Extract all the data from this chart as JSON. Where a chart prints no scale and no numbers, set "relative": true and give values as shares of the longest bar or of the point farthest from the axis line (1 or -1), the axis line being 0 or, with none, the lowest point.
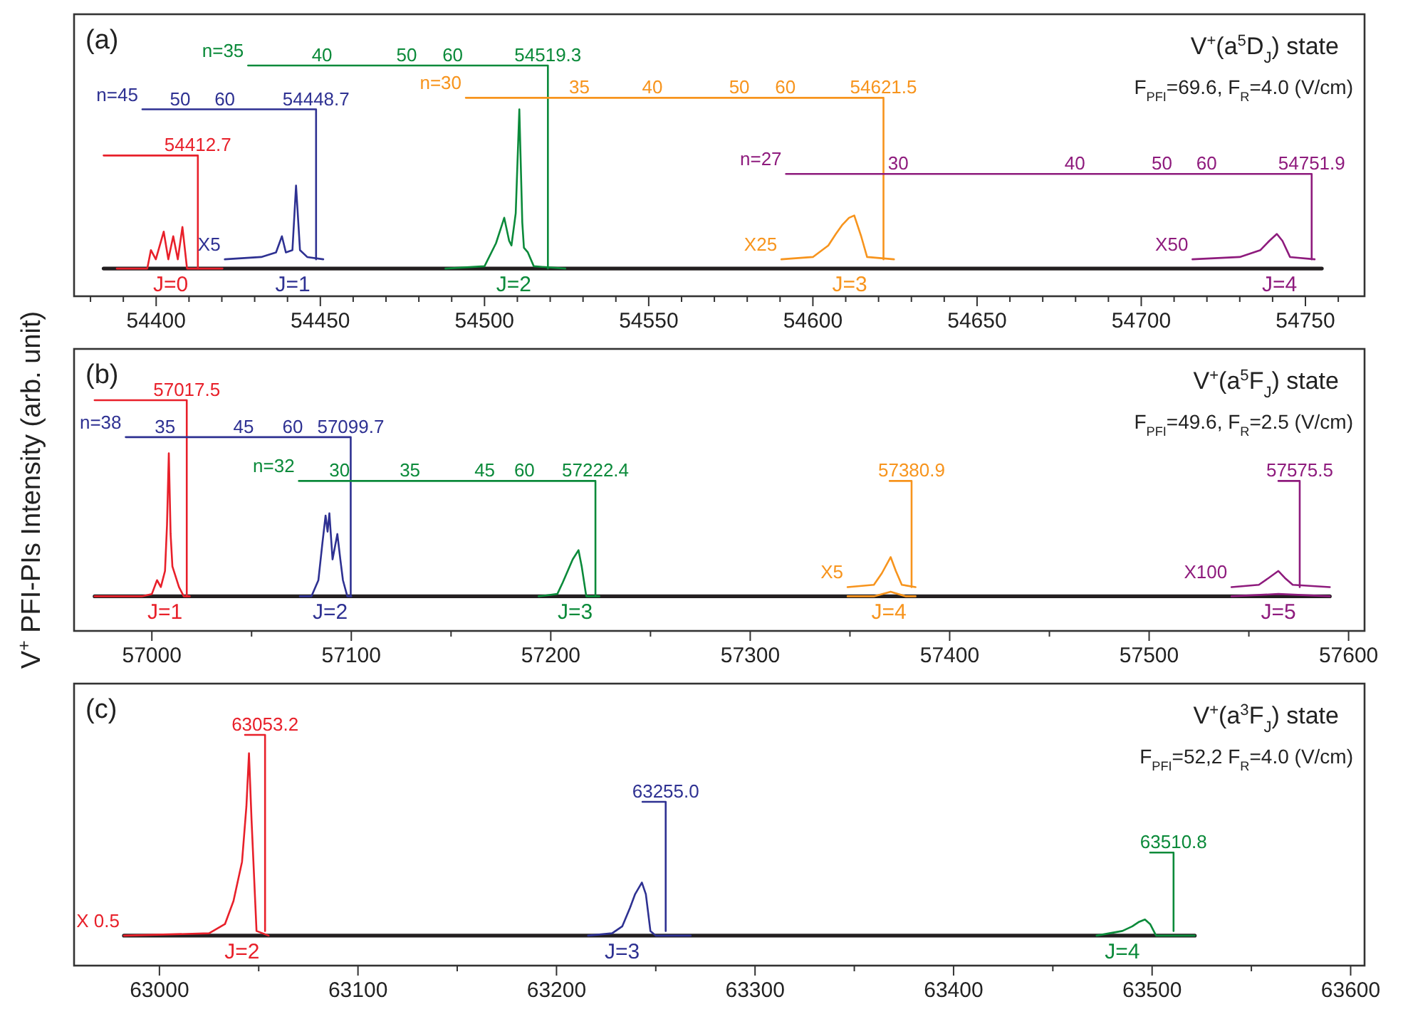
{
  "chart_data": [
    {
      "type": "line",
      "relative": true,
      "title": "(a)",
      "subtitle": "V$^{+}$(a$^{5}$D$_{J}$) state",
      "tick_labels": "x",
      "xlim": [
        54375,
        54768
      ],
      "xticks": [
        {
          "value": 54380,
          "label": null
        },
        {
          "value": 54390,
          "label": null
        },
        54400,
        {
          "value": 54410,
          "label": null
        },
        {
          "value": 54420,
          "label": null
        },
        {
          "value": 54430,
          "label": null
        },
        {
          "value": 54440,
          "label": null
        },
        54450,
        {
          "value": 54460,
          "label": null
        },
        {
          "value": 54470,
          "label": null
        },
        {
          "value": 54480,
          "label": null
        },
        {
          "value": 54490,
          "label": null
        },
        54500,
        {
          "value": 54510,
          "label": null
        },
        {
          "value": 54520,
          "label": null
        },
        {
          "value": 54530,
          "label": null
        },
        {
          "value": 54540,
          "label": null
        },
        54550,
        {
          "value": 54560,
          "label": null
        },
        {
          "value": 54570,
          "label": null
        },
        {
          "value": 54580,
          "label": null
        },
        {
          "value": 54590,
          "label": null
        },
        54600,
        {
          "value": 54610,
          "label": null
        },
        {
          "value": 54620,
          "label": null
        },
        {
          "value": 54630,
          "label": null
        },
        {
          "value": 54640,
          "label": null
        },
        54650,
        {
          "value": 54660,
          "label": null
        },
        {
          "value": 54670,
          "label": null
        },
        {
          "value": 54680,
          "label": null
        },
        {
          "value": 54690,
          "label": null
        },
        54700,
        {
          "value": 54710,
          "label": null
        },
        {
          "value": 54720,
          "label": null
        },
        {
          "value": 54730,
          "label": null
        },
        {
          "value": 54740,
          "label": null
        },
        54750,
        {
          "value": 54760,
          "label": null
        }
      ],
      "series": [
        {
          "color": "#231f20",
          "x": [
            54384,
            54755
          ],
          "values": [
            0.12,
            0.12
          ]
        },
        {
          "color": "#e8202a",
          "x": [
            54388.0,
            54397.3,
            54398.4,
            54399.9,
            54402.3,
            54403.7,
            54405.2,
            54406.6,
            54408.0,
            54409.4,
            54420.2
          ],
          "values": [
            0.12,
            0.12,
            0.2,
            0.16,
            0.28,
            0.16,
            0.26,
            0.16,
            0.3,
            0.12,
            0.12
          ]
        },
        {
          "color": "#2e3192",
          "x": [
            54420.9,
            54432,
            54436.5,
            54438.3,
            54439.5,
            54441.5,
            54442.6,
            54443.8,
            54446,
            54450.9
          ],
          "values": [
            0.16,
            0.17,
            0.19,
            0.26,
            0.19,
            0.2,
            0.48,
            0.2,
            0.17,
            0.16
          ]
        },
        {
          "color": "#0b8a3a",
          "x": [
            54488.1,
            54500,
            54503.5,
            54506.0,
            54507.5,
            54508.2,
            54509.5,
            54510.6,
            54511.5,
            54512.0,
            54513.2,
            54515,
            54524.6
          ],
          "values": [
            0.12,
            0.13,
            0.23,
            0.34,
            0.24,
            0.22,
            0.36,
            0.81,
            0.32,
            0.21,
            0.19,
            0.13,
            0.12
          ]
        },
        {
          "color": "#f7941d",
          "x": [
            54590.4,
            54600,
            54604.7,
            54607,
            54609.0,
            54611,
            54612.6,
            54614.7,
            54616.5,
            54624.7
          ],
          "values": [
            0.16,
            0.17,
            0.22,
            0.27,
            0.31,
            0.34,
            0.35,
            0.26,
            0.17,
            0.16
          ]
        },
        {
          "color": "#8e1b7d",
          "x": [
            54715.6,
            54730,
            54736.3,
            54739,
            54741.3,
            54743,
            54745.3,
            54752.8
          ],
          "values": [
            0.16,
            0.17,
            0.2,
            0.24,
            0.27,
            0.24,
            0.17,
            0.16
          ]
        },
        {
          "color": "#e8202a",
          "x": [
            54384,
            54412.7,
            54412.7
          ],
          "values": [
            0.61,
            0.61,
            0.12
          ]
        },
        {
          "color": "#2e3192",
          "x": [
            54395.8,
            54448.7,
            54448.7
          ],
          "values": [
            0.81,
            0.81,
            0.16
          ]
        },
        {
          "color": "#0b8a3a",
          "x": [
            54428.0,
            54519.3,
            54519.3
          ],
          "values": [
            1,
            1,
            0.12
          ]
        },
        {
          "color": "#f7941d",
          "x": [
            54494.3,
            54621.5,
            54621.5
          ],
          "values": [
            0.86,
            0.86,
            0.16
          ]
        },
        {
          "color": "#8e1b7d",
          "x": [
            54591.8,
            54751.9,
            54751.9
          ],
          "values": [
            0.53,
            0.53,
            0.16
          ]
        }
      ],
      "annotations": [
        "F$_{PFI}$=69.6, F$_{R}$=4.0 (V/cm)",
        {
          "text": "54412.7",
          "x": 54412.7,
          "y": 0.61
        },
        {
          "text": "n=45",
          "x": 54395.8,
          "y": 0.81
        },
        {
          "text": "50",
          "x": 54407.3,
          "y": 0.81
        },
        {
          "text": "60",
          "x": 54420.9,
          "y": 0.81
        },
        {
          "text": "54448.7",
          "x": 54448.7,
          "y": 0.81
        },
        {
          "text": "n=35",
          "x": 54428.0,
          "y": 1
        },
        {
          "text": "40",
          "x": 54450.5,
          "y": 1
        },
        {
          "text": "50",
          "x": 54476.3,
          "y": 1
        },
        {
          "text": "60",
          "x": 54490.3,
          "y": 1
        },
        {
          "text": "54519.3",
          "x": 54519.3,
          "y": 1
        },
        {
          "text": "n=30",
          "x": 54494.3,
          "y": 0.86
        },
        {
          "text": "35",
          "x": 54528.9,
          "y": 0.86
        },
        {
          "text": "40",
          "x": 54551.1,
          "y": 0.86
        },
        {
          "text": "50",
          "x": 54577.6,
          "y": 0.86
        },
        {
          "text": "60",
          "x": 54591.6,
          "y": 0.86
        },
        {
          "text": "54621.5",
          "x": 54621.5,
          "y": 0.86
        },
        {
          "text": "n=27",
          "x": 54591.8,
          "y": 0.53
        },
        {
          "text": "30",
          "x": 54626.0,
          "y": 0.53
        },
        {
          "text": "40",
          "x": 54679.8,
          "y": 0.53
        },
        {
          "text": "50",
          "x": 54706.3,
          "y": 0.53
        },
        {
          "text": "60",
          "x": 54719.9,
          "y": 0.53
        },
        {
          "text": "54751.9",
          "x": 54751.9,
          "y": 0.53
        },
        {
          "text": "X5",
          "x": 54420.9,
          "y": 0.16
        },
        {
          "text": "X25",
          "x": 54590.4,
          "y": 0.16
        },
        {
          "text": "X50",
          "x": 54715.6,
          "y": 0.16
        },
        {
          "text": "J=0",
          "x": 54404.4,
          "y": 0.12
        },
        {
          "text": "J=1",
          "x": 54441.6,
          "y": 0.12
        },
        {
          "text": "J=2",
          "x": 54508.9,
          "y": 0.12
        },
        {
          "text": "J=3",
          "x": 54611.2,
          "y": 0.12
        },
        {
          "text": "J=4",
          "x": 54742.1,
          "y": 0.12
        }
      ]
    },
    {
      "type": "line",
      "relative": true,
      "title": "(b)",
      "subtitle": "V$^{+}$(a$^{5}$F$_{J}$) state",
      "ylabel": "V$^{+}$ PFI-PIs Intensity (arb. unit)",
      "tick_labels": "x",
      "xlim": [
        56961,
        57608
      ],
      "xticks": [
        57000,
        {
          "value": 57050,
          "label": null
        },
        57100,
        {
          "value": 57150,
          "label": null
        },
        57200,
        {
          "value": 57250,
          "label": null
        },
        57300,
        {
          "value": 57350,
          "label": null
        },
        57400,
        {
          "value": 57450,
          "label": null
        },
        57500,
        {
          "value": 57550,
          "label": null
        },
        57600
      ],
      "series": [
        {
          "color": "#231f20",
          "x": [
            56971.3,
            57590.6
          ],
          "values": [
            0.15,
            0.15
          ]
        },
        {
          "color": "#e8202a",
          "x": [
            56971.3,
            56995,
            57000,
            57002.6,
            57004.5,
            57006.6,
            57007.6,
            57008.5,
            57009.4,
            57010.3,
            57013.6,
            57016,
            57019
          ],
          "values": [
            0.15,
            0.15,
            0.16,
            0.22,
            0.19,
            0.26,
            0.46,
            0.77,
            0.42,
            0.28,
            0.19,
            0.15,
            0.15
          ]
        },
        {
          "color": "#2e3192",
          "x": [
            57074.2,
            57080,
            57083.5,
            57085.5,
            57087.1,
            57088.1,
            57089.0,
            57090.6,
            57093.0,
            57094.5,
            57095.8,
            57098,
            57100
          ],
          "values": [
            0.15,
            0.15,
            0.22,
            0.38,
            0.5,
            0.43,
            0.51,
            0.31,
            0.42,
            0.31,
            0.22,
            0.15,
            0.15
          ]
        },
        {
          "color": "#0b8a3a",
          "x": [
            57193.9,
            57203.3,
            57206,
            57208.0,
            57211,
            57213.9,
            57215.5,
            57217.8,
            57224.4
          ],
          "values": [
            0.15,
            0.16,
            0.21,
            0.25,
            0.31,
            0.35,
            0.28,
            0.15,
            0.15
          ]
        },
        {
          "color": "#f7941d",
          "x": [
            57348.8,
            57362,
            57370.4,
            57378,
            57382.9
          ],
          "values": [
            0.15,
            0.15,
            0.17,
            0.15,
            0.15
          ]
        },
        {
          "color": "#f7941d",
          "x": [
            57348.8,
            57362,
            57366,
            57370.4,
            57373,
            57376,
            57382.9
          ],
          "values": [
            0.19,
            0.2,
            0.25,
            0.32,
            0.26,
            0.2,
            0.19
          ]
        },
        {
          "color": "#8e1b7d",
          "x": [
            57541.3,
            57564.8,
            57590.6
          ],
          "values": [
            0.15,
            0.16,
            0.15
          ]
        },
        {
          "color": "#8e1b7d",
          "x": [
            57541.3,
            57555,
            57560,
            57564.8,
            57568,
            57572,
            57590.6
          ],
          "values": [
            0.19,
            0.2,
            0.23,
            0.26,
            0.23,
            0.2,
            0.19
          ]
        },
        {
          "color": "#e8202a",
          "x": [
            56971.3,
            57017.5,
            57017.5
          ],
          "values": [
            1,
            1,
            0.15
          ]
        },
        {
          "color": "#2e3192",
          "x": [
            56986.9,
            57099.7,
            57099.7
          ],
          "values": [
            0.84,
            0.84,
            0.15
          ]
        },
        {
          "color": "#0b8a3a",
          "x": [
            57073.7,
            57222.4,
            57222.4
          ],
          "values": [
            0.65,
            0.65,
            0.15
          ]
        },
        {
          "color": "#f7941d",
          "x": [
            57369.9,
            57380.9,
            57380.9
          ],
          "values": [
            0.65,
            0.65,
            0.19
          ]
        },
        {
          "color": "#8e1b7d",
          "x": [
            57564.8,
            57575.5,
            57575.5
          ],
          "values": [
            0.65,
            0.65,
            0.19
          ]
        }
      ],
      "annotations": [
        "F$_{PFI}$=49.6, F$_{R}$=2.5 (V/cm)",
        {
          "text": "57017.5",
          "x": 57017.5,
          "y": 1
        },
        {
          "text": "n=38",
          "x": 56986.9,
          "y": 0.84
        },
        {
          "text": "35",
          "x": 57006.6,
          "y": 0.84
        },
        {
          "text": "45",
          "x": 57046.0,
          "y": 0.84
        },
        {
          "text": "60",
          "x": 57070.6,
          "y": 0.84
        },
        {
          "text": "57099.7",
          "x": 57099.7,
          "y": 0.84
        },
        {
          "text": "n=32",
          "x": 57073.7,
          "y": 0.65
        },
        {
          "text": "30",
          "x": 57094.1,
          "y": 0.65
        },
        {
          "text": "35",
          "x": 57129.4,
          "y": 0.65
        },
        {
          "text": "45",
          "x": 57166.9,
          "y": 0.65
        },
        {
          "text": "60",
          "x": 57186.8,
          "y": 0.65
        },
        {
          "text": "57222.4",
          "x": 57222.4,
          "y": 0.65
        },
        {
          "text": "57380.9",
          "x": 57380.9,
          "y": 0.65
        },
        {
          "text": "57575.5",
          "x": 57575.5,
          "y": 0.65
        },
        {
          "text": "X5",
          "x": 57348.8,
          "y": 0.19
        },
        {
          "text": "X100",
          "x": 57541.3,
          "y": 0.19
        },
        {
          "text": "J=1",
          "x": 57006.6,
          "y": 0.15
        },
        {
          "text": "J=2",
          "x": 57089.4,
          "y": 0.15
        },
        {
          "text": "J=3",
          "x": 57212.2,
          "y": 0.15
        },
        {
          "text": "J=4",
          "x": 57369.5,
          "y": 0.15
        },
        {
          "text": "J=5",
          "x": 57564.8,
          "y": 0.15
        }
      ]
    },
    {
      "type": "line",
      "relative": true,
      "title": "(c)",
      "subtitle": "V$^{+}$(a$^{3}$F$_{J}$) state",
      "tick_labels": "x",
      "xlim": [
        62957,
        63607
      ],
      "xticks": [
        63000,
        {
          "value": 63050,
          "label": null
        },
        63100,
        {
          "value": 63150,
          "label": null
        },
        63200,
        {
          "value": 63250,
          "label": null
        },
        63300,
        {
          "value": 63350,
          "label": null
        },
        63400,
        {
          "value": 63450,
          "label": null
        },
        63500,
        {
          "value": 63550,
          "label": null
        },
        63600
      ],
      "series": [
        {
          "color": "#231f20",
          "x": [
            62982.1,
            63521.5
          ],
          "values": [
            0.13,
            0.13
          ]
        },
        {
          "color": "#e8202a",
          "x": [
            62982.1,
            63025,
            63033,
            63037.3,
            63041.6,
            63043.8,
            63045.1,
            63046.4,
            63048.9,
            63055
          ],
          "values": [
            0.13,
            0.14,
            0.18,
            0.28,
            0.45,
            0.69,
            0.92,
            0.63,
            0.15,
            0.13
          ]
        },
        {
          "color": "#2e3192",
          "x": [
            63215.9,
            63228,
            63233.1,
            63237,
            63239.6,
            63243.0,
            63245,
            63247.3,
            63250,
            63267.6
          ],
          "values": [
            0.13,
            0.14,
            0.17,
            0.25,
            0.31,
            0.36,
            0.31,
            0.15,
            0.13,
            0.13
          ]
        },
        {
          "color": "#0b8a3a",
          "x": [
            63472,
            63485,
            63490,
            63493.5,
            63496.4,
            63499,
            63502,
            63521.5
          ],
          "values": [
            0.13,
            0.15,
            0.17,
            0.19,
            0.2,
            0.18,
            0.13,
            0.13
          ]
        },
        {
          "color": "#e8202a",
          "x": [
            63043.1,
            63053.2,
            63053.2
          ],
          "values": [
            1,
            1,
            0.15
          ]
        },
        {
          "color": "#2e3192",
          "x": [
            63243.3,
            63255.0,
            63255.0
          ],
          "values": [
            0.71,
            0.71,
            0.15
          ]
        },
        {
          "color": "#0b8a3a",
          "x": [
            63499,
            63510.8,
            63510.8
          ],
          "values": [
            0.49,
            0.49,
            0.15
          ]
        }
      ],
      "annotations": [
        "F$_{PFI}$=52,2 F$_{R}$=4.0 (V/cm)",
        {
          "text": "63053.2",
          "x": 63053.2,
          "y": 1
        },
        {
          "text": "63255.0",
          "x": 63255.0,
          "y": 0.71
        },
        {
          "text": "63510.8",
          "x": 63510.8,
          "y": 0.49
        },
        {
          "text": "X 0.5",
          "x": 62982.1,
          "y": 0.13
        },
        {
          "text": "J=2",
          "x": 63041.6,
          "y": 0.13
        },
        {
          "text": "J=3",
          "x": 63233.1,
          "y": 0.13
        },
        {
          "text": "J=4",
          "x": 63485,
          "y": 0.13
        }
      ]
    }
  ]
}
